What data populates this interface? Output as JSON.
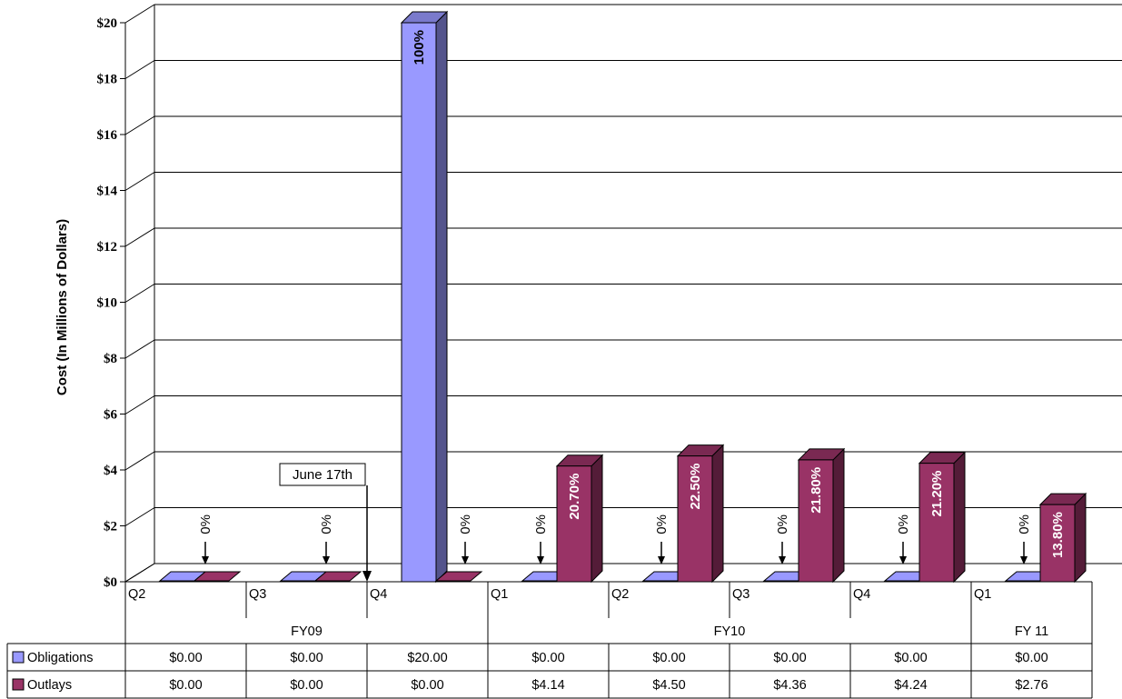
{
  "chart_data": {
    "type": "bar",
    "ylabel": "Cost (In Millions of Dollars)",
    "ylim": [
      0,
      20
    ],
    "y_ticks": [
      "$0",
      "$2",
      "$4",
      "$6",
      "$8",
      "$10",
      "$12",
      "$14",
      "$16",
      "$18",
      "$20"
    ],
    "categories": [
      "Q2",
      "Q3",
      "Q4",
      "Q1",
      "Q2",
      "Q3",
      "Q4",
      "Q1"
    ],
    "groups": [
      {
        "label": "FY09",
        "span": 3
      },
      {
        "label": "FY10",
        "span": 4
      },
      {
        "label": "FY 11",
        "span": 1
      }
    ],
    "series": [
      {
        "name": "Obligations",
        "color": "#9999ff",
        "values": [
          0,
          0,
          20,
          0,
          0,
          0,
          0,
          0
        ],
        "table_values": [
          "$0.00",
          "$0.00",
          "$20.00",
          "$0.00",
          "$0.00",
          "$0.00",
          "$0.00",
          "$0.00"
        ],
        "data_labels": [
          "",
          "",
          "100%",
          "",
          "",
          "",
          "",
          ""
        ]
      },
      {
        "name": "Outlays",
        "color": "#993366",
        "values": [
          0,
          0,
          0,
          4.14,
          4.5,
          4.36,
          4.24,
          2.76
        ],
        "table_values": [
          "$0.00",
          "$0.00",
          "$0.00",
          "$4.14",
          "$4.50",
          "$4.36",
          "$4.24",
          "$2.76"
        ],
        "data_labels": [
          "",
          "",
          "",
          "20.70%",
          "22.50%",
          "21.80%",
          "21.20%",
          "13.80%"
        ]
      }
    ],
    "zero_labels": [
      "0%",
      "0%",
      "0%",
      "0%",
      "0%",
      "0%",
      "0%",
      "0%"
    ],
    "annotation": {
      "text": "June 17th",
      "category_index": 1
    },
    "grid": true,
    "legend": "bottom-left, in data table"
  }
}
